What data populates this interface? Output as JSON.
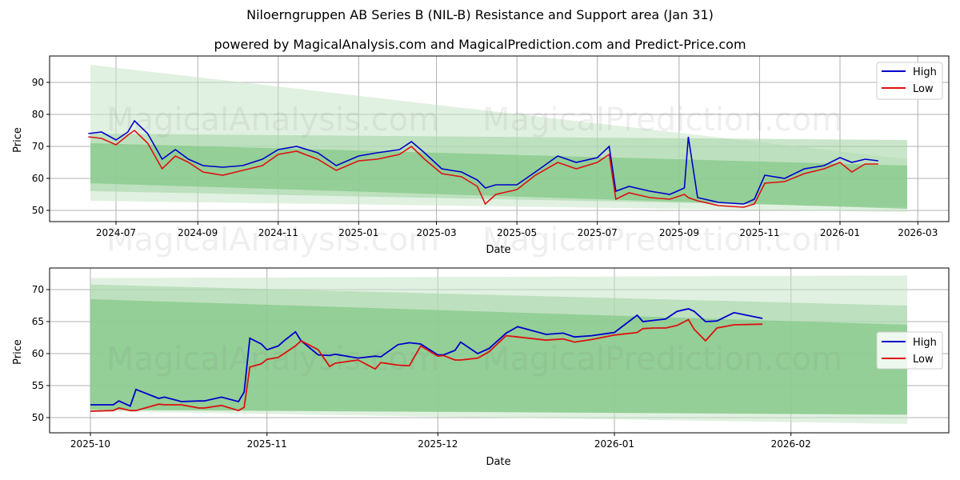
{
  "title": "Niloerngruppen AB Series B (NIL-B) Resistance and Support area (Jan 31)",
  "subtitle": "powered by MagicalAnalysis.com and MagicalPrediction.com and Predict-Price.com",
  "watermarks": [
    "MagicalAnalysis.com",
    "MagicalPrediction.com"
  ],
  "colors": {
    "high": "#0000cc",
    "low": "#dd1111",
    "band_light": "#c8e6c9",
    "band_mid": "#a5d6a7",
    "band_dark": "#81c784"
  },
  "legend": {
    "high": "High",
    "low": "Low"
  },
  "chart_data": [
    {
      "type": "line",
      "title": "Niloerngruppen AB Series B (NIL-B) Resistance and Support area (Jan 31)",
      "xlabel": "Date",
      "ylabel": "Price",
      "ylim": [
        46,
        98
      ],
      "yticks": [
        50,
        60,
        70,
        80,
        90
      ],
      "xticks": [
        "2024-07",
        "2024-09",
        "2024-11",
        "2025-01",
        "2025-03",
        "2025-05",
        "2025-07",
        "2025-09",
        "2025-11",
        "2026-01",
        "2026-03"
      ],
      "grid": true,
      "legend_position": "upper right",
      "x": [
        "2024-06-10",
        "2024-06-20",
        "2024-07-01",
        "2024-07-10",
        "2024-07-15",
        "2024-07-25",
        "2024-08-05",
        "2024-08-15",
        "2024-08-25",
        "2024-09-05",
        "2024-09-20",
        "2024-10-05",
        "2024-10-20",
        "2024-11-01",
        "2024-11-15",
        "2024-12-01",
        "2024-12-15",
        "2025-01-01",
        "2025-01-15",
        "2025-02-01",
        "2025-02-10",
        "2025-02-20",
        "2025-03-05",
        "2025-03-20",
        "2025-04-01",
        "2025-04-07",
        "2025-04-15",
        "2025-05-01",
        "2025-05-15",
        "2025-06-01",
        "2025-06-15",
        "2025-07-01",
        "2025-07-10",
        "2025-07-15",
        "2025-07-25",
        "2025-08-10",
        "2025-08-25",
        "2025-09-05",
        "2025-09-08",
        "2025-09-15",
        "2025-10-01",
        "2025-10-20",
        "2025-10-28",
        "2025-11-05",
        "2025-11-20",
        "2025-12-05",
        "2025-12-20",
        "2026-01-01",
        "2026-01-10",
        "2026-01-20",
        "2026-01-30"
      ],
      "series": [
        {
          "name": "High",
          "values": [
            74,
            74.5,
            72,
            74.5,
            78,
            74,
            66,
            69,
            66,
            64,
            63.5,
            64,
            66,
            69,
            70,
            68,
            64,
            67,
            68,
            69,
            71.5,
            68,
            63,
            62,
            59.5,
            57,
            58,
            58,
            62,
            67,
            65,
            66.5,
            70,
            56,
            57.5,
            56,
            55,
            57,
            73,
            54,
            52.5,
            52,
            53.5,
            61,
            60,
            63,
            64,
            66.5,
            65,
            66,
            65.5
          ]
        },
        {
          "name": "Low",
          "values": [
            73,
            72.5,
            70.5,
            73.5,
            75,
            71,
            63,
            67,
            65,
            62,
            61,
            62.5,
            64,
            67.5,
            68.5,
            66,
            62.5,
            65.5,
            66,
            67.5,
            70,
            66,
            61.5,
            60.5,
            57.5,
            52,
            55,
            56.5,
            61,
            65,
            63,
            65,
            67.5,
            53.5,
            55.5,
            54,
            53.5,
            55,
            54,
            53,
            51.5,
            51,
            52,
            58.5,
            59,
            61.5,
            63,
            65,
            62,
            64.5,
            64.5
          ]
        }
      ],
      "bands": [
        {
          "name": "outer-light",
          "start": [
            95.5,
            53
          ],
          "end": [
            66,
            49.5
          ]
        },
        {
          "name": "upper-light",
          "start": [
            74,
            56
          ],
          "end": [
            72,
            51
          ]
        },
        {
          "name": "core",
          "start": [
            71,
            58.5
          ],
          "end": [
            64,
            50.5
          ]
        }
      ]
    },
    {
      "type": "line",
      "xlabel": "Date",
      "ylabel": "Price",
      "ylim": [
        47.5,
        73
      ],
      "yticks": [
        50,
        55,
        60,
        65,
        70
      ],
      "xticks": [
        "2025-10",
        "2025-11",
        "2025-12",
        "2026-01",
        "2026-02"
      ],
      "grid": true,
      "legend_position": "center right",
      "x": [
        "2025-10-01",
        "2025-10-05",
        "2025-10-06",
        "2025-10-08",
        "2025-10-09",
        "2025-10-13",
        "2025-10-14",
        "2025-10-17",
        "2025-10-20",
        "2025-10-21",
        "2025-10-24",
        "2025-10-27",
        "2025-10-28",
        "2025-10-29",
        "2025-10-31",
        "2025-11-01",
        "2025-11-03",
        "2025-11-04",
        "2025-11-06",
        "2025-11-07",
        "2025-11-10",
        "2025-11-12",
        "2025-11-13",
        "2025-11-17",
        "2025-11-20",
        "2025-11-21",
        "2025-11-24",
        "2025-11-26",
        "2025-11-28",
        "2025-12-01",
        "2025-12-02",
        "2025-12-04",
        "2025-12-05",
        "2025-12-08",
        "2025-12-10",
        "2025-12-13",
        "2025-12-15",
        "2025-12-20",
        "2025-12-23",
        "2025-12-25",
        "2025-12-28",
        "2026-01-01",
        "2026-01-05",
        "2026-01-06",
        "2026-01-08",
        "2026-01-10",
        "2026-01-12",
        "2026-01-14",
        "2026-01-15",
        "2026-01-17",
        "2026-01-19",
        "2026-01-22",
        "2026-01-27"
      ],
      "series": [
        {
          "name": "High",
          "values": [
            52,
            52,
            52.6,
            51.8,
            54.4,
            53,
            53.2,
            52.5,
            52.6,
            52.6,
            53.2,
            52.5,
            54,
            62.4,
            61.5,
            60.6,
            61.2,
            62,
            63.4,
            62,
            59.8,
            59.7,
            59.9,
            59.3,
            59.6,
            59.5,
            61.4,
            61.7,
            61.5,
            59.8,
            59.8,
            60.5,
            61.8,
            60,
            60.8,
            63.2,
            64.2,
            63,
            63.2,
            62.6,
            62.8,
            63.3,
            66,
            65,
            65.2,
            65.4,
            66.6,
            67,
            66.6,
            65,
            65.1,
            66.4,
            65.5
          ]
        },
        {
          "name": "Low",
          "values": [
            51,
            51.1,
            51.5,
            51.1,
            51.1,
            52.1,
            52,
            52,
            51.5,
            51.5,
            51.9,
            51.1,
            51.6,
            57.9,
            58.4,
            59.1,
            59.4,
            60,
            61.2,
            62,
            60.6,
            58,
            58.5,
            59,
            57.6,
            58.6,
            58.2,
            58.1,
            61.2,
            59.6,
            59.7,
            59,
            59,
            59.3,
            60.3,
            62.8,
            62.6,
            62.1,
            62.3,
            61.8,
            62.2,
            62.9,
            63.3,
            63.9,
            64,
            64,
            64.4,
            65.3,
            63.8,
            62,
            64,
            64.5,
            64.6
          ]
        }
      ],
      "bands": [
        {
          "name": "outer-light",
          "start": [
            71.8,
            51
          ],
          "end": [
            72.2,
            49
          ]
        },
        {
          "name": "upper-light",
          "start": [
            70.8,
            51.3
          ],
          "end": [
            67.5,
            50.4
          ]
        },
        {
          "name": "core",
          "start": [
            68.5,
            51.2
          ],
          "end": [
            64.5,
            50.5
          ]
        }
      ]
    }
  ]
}
